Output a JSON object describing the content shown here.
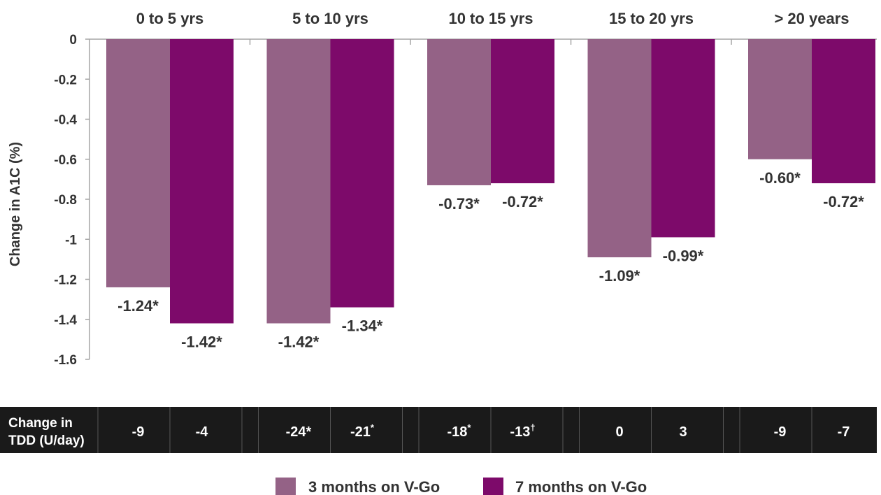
{
  "chart_data": {
    "type": "bar",
    "categories": [
      "0 to 5 yrs",
      "5 to 10 yrs",
      "10 to 15 yrs",
      "15 to 20 yrs",
      "> 20 years"
    ],
    "series": [
      {
        "name": "3 months on V-Go",
        "color": "#946286",
        "values": [
          -1.24,
          -1.42,
          -0.73,
          -1.09,
          -0.6
        ],
        "labels": [
          "-1.24*",
          "-1.42*",
          "-0.73*",
          "-1.09*",
          "-0.60*"
        ]
      },
      {
        "name": "7 months on V-Go",
        "color": "#7d0a6a",
        "values": [
          -1.42,
          -1.34,
          -0.72,
          -0.99,
          -0.72
        ],
        "labels": [
          "-1.42*",
          "-1.34*",
          "-0.72*",
          "-0.99*",
          "-0.72*"
        ]
      }
    ],
    "ylabel": "Change in A1C (%)",
    "ylim": [
      -1.6,
      0
    ],
    "yticks": [
      "0",
      "-0.2",
      "-0.4",
      "-0.6",
      "-0.8",
      "-1",
      "-1.2",
      "-1.4",
      "-1.6"
    ],
    "ytick_values": [
      0,
      -0.2,
      -0.4,
      -0.6,
      -0.8,
      -1,
      -1.2,
      -1.4,
      -1.6
    ],
    "legend_position": "bottom",
    "grid": false
  },
  "tdd_table": {
    "header_line1": "Change in",
    "header_line2": "TDD (U/day)",
    "rows": [
      [
        {
          "value": "-9",
          "sup": ""
        },
        {
          "value": "-4",
          "sup": ""
        }
      ],
      [
        {
          "value": "-24*",
          "sup": ""
        },
        {
          "value": "-21",
          "sup": "*"
        }
      ],
      [
        {
          "value": "-18",
          "sup": "*"
        },
        {
          "value": "-13",
          "sup": "†"
        }
      ],
      [
        {
          "value": "0",
          "sup": ""
        },
        {
          "value": "3",
          "sup": ""
        }
      ],
      [
        {
          "value": "-9",
          "sup": ""
        },
        {
          "value": "-7",
          "sup": ""
        }
      ]
    ],
    "background": "#1a1a1a"
  }
}
